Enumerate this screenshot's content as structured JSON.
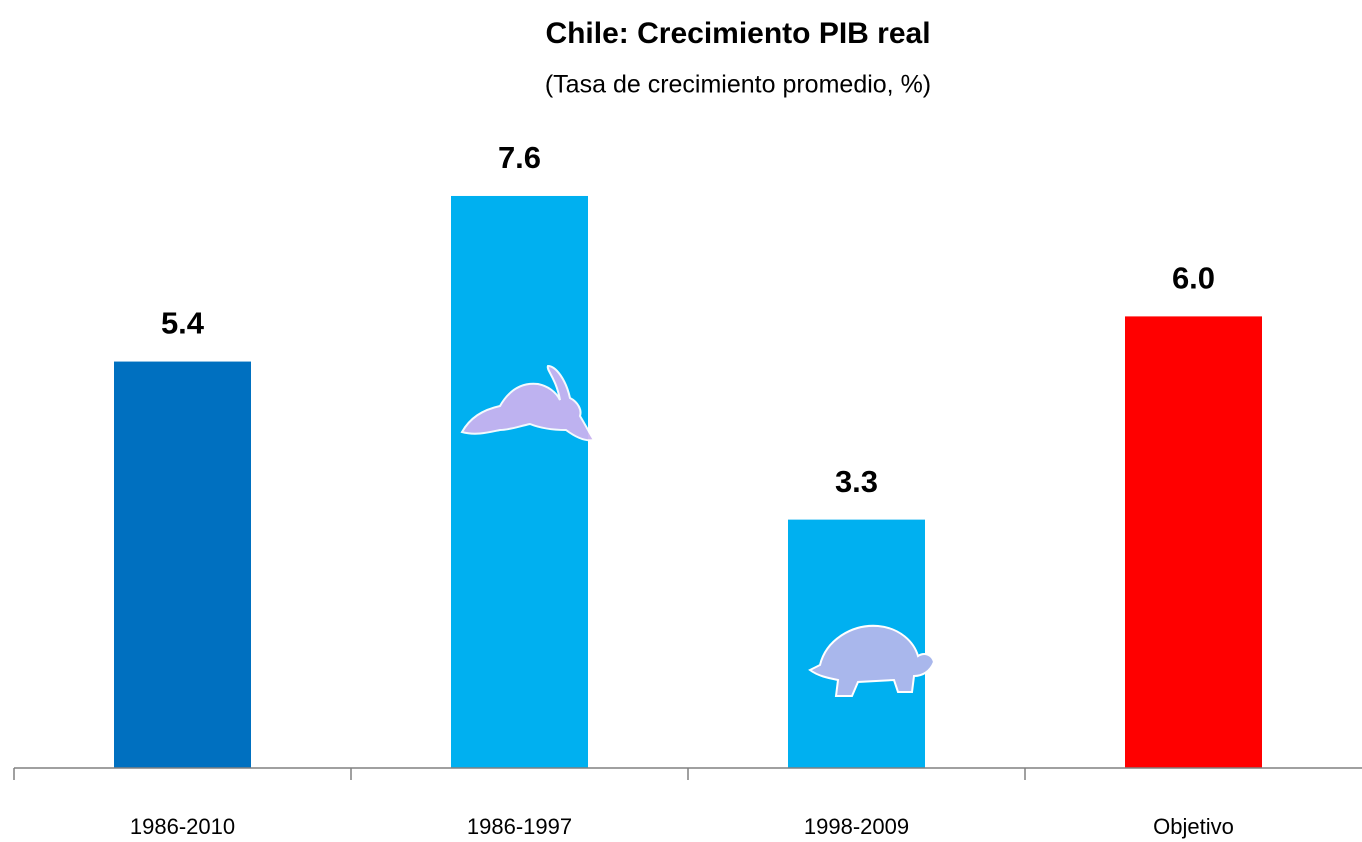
{
  "chart_data": {
    "type": "bar",
    "title": "Chile: Crecimiento PIB real",
    "subtitle": "(Tasa de crecimiento promedio, %)",
    "categories": [
      "1986-2010",
      "1986-1997",
      "1998-2009",
      "Objetivo"
    ],
    "values": [
      5.4,
      7.6,
      3.3,
      6.0
    ],
    "value_labels": [
      "5.4",
      "7.6",
      "3.3",
      "6.0"
    ],
    "colors": [
      "#0070c0",
      "#00b0f0",
      "#00b0f0",
      "#ff0000"
    ],
    "ylim": [
      0,
      9
    ],
    "grid": false
  }
}
